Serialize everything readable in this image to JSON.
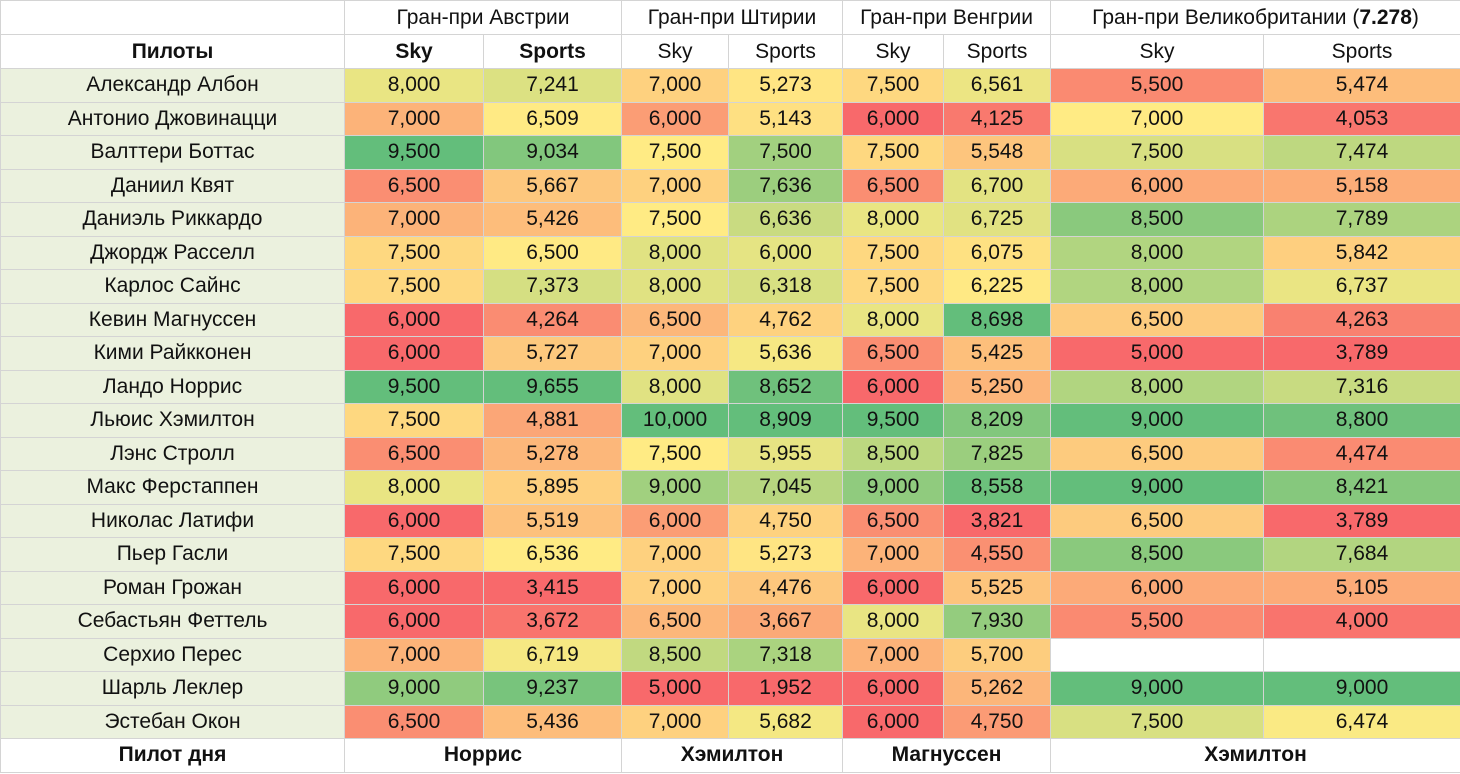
{
  "header": {
    "grand_prix": [
      {
        "name": "Гран-при Австрии",
        "name_suffix": "",
        "rating": ""
      },
      {
        "name": "Гран-при Штирии",
        "name_suffix": "",
        "rating": ""
      },
      {
        "name": "Гран-при Венгрии",
        "name_suffix": "",
        "rating": ""
      },
      {
        "name": "Гран-при Великобритании (",
        "rating": "7.278",
        "name_suffix": ")"
      }
    ],
    "pilots_label": "Пилоты",
    "sky_label": "Sky",
    "sports_label": "Sports"
  },
  "rows": [
    {
      "name": "Александр Албон",
      "values": [
        "8,000",
        "7,241",
        "7,000",
        "5,273",
        "7,500",
        "6,561",
        "5,500",
        "5,474"
      ]
    },
    {
      "name": "Антонио Джовинацци",
      "values": [
        "7,000",
        "6,509",
        "6,000",
        "5,143",
        "6,000",
        "4,125",
        "7,000",
        "4,053"
      ]
    },
    {
      "name": "Валттери Боттас",
      "values": [
        "9,500",
        "9,034",
        "7,500",
        "7,500",
        "7,500",
        "5,548",
        "7,500",
        "7,474"
      ]
    },
    {
      "name": "Даниил Квят",
      "values": [
        "6,500",
        "5,667",
        "7,000",
        "7,636",
        "6,500",
        "6,700",
        "6,000",
        "5,158"
      ]
    },
    {
      "name": "Даниэль Риккардо",
      "values": [
        "7,000",
        "5,426",
        "7,500",
        "6,636",
        "8,000",
        "6,725",
        "8,500",
        "7,789"
      ]
    },
    {
      "name": "Джордж Расселл",
      "values": [
        "7,500",
        "6,500",
        "8,000",
        "6,000",
        "7,500",
        "6,075",
        "8,000",
        "5,842"
      ]
    },
    {
      "name": "Карлос Сайнс",
      "values": [
        "7,500",
        "7,373",
        "8,000",
        "6,318",
        "7,500",
        "6,225",
        "8,000",
        "6,737"
      ]
    },
    {
      "name": "Кевин Магнуссен",
      "values": [
        "6,000",
        "4,264",
        "6,500",
        "4,762",
        "8,000",
        "8,698",
        "6,500",
        "4,263"
      ]
    },
    {
      "name": "Кими Райкконен",
      "values": [
        "6,000",
        "5,727",
        "7,000",
        "5,636",
        "6,500",
        "5,425",
        "5,000",
        "3,789"
      ]
    },
    {
      "name": "Ландо Норрис",
      "values": [
        "9,500",
        "9,655",
        "8,000",
        "8,652",
        "6,000",
        "5,250",
        "8,000",
        "7,316"
      ]
    },
    {
      "name": "Льюис Хэмилтон",
      "values": [
        "7,500",
        "4,881",
        "10,000",
        "8,909",
        "9,500",
        "8,209",
        "9,000",
        "8,800"
      ]
    },
    {
      "name": "Лэнс Стролл",
      "values": [
        "6,500",
        "5,278",
        "7,500",
        "5,955",
        "8,500",
        "7,825",
        "6,500",
        "4,474"
      ]
    },
    {
      "name": "Макс Ферстаппен",
      "values": [
        "8,000",
        "5,895",
        "9,000",
        "7,045",
        "9,000",
        "8,558",
        "9,000",
        "8,421"
      ]
    },
    {
      "name": "Николас Латифи",
      "values": [
        "6,000",
        "5,519",
        "6,000",
        "4,750",
        "6,500",
        "3,821",
        "6,500",
        "3,789"
      ]
    },
    {
      "name": "Пьер Гасли",
      "values": [
        "7,500",
        "6,536",
        "7,000",
        "5,273",
        "7,000",
        "4,550",
        "8,500",
        "7,684"
      ]
    },
    {
      "name": "Роман Грожан",
      "values": [
        "6,000",
        "3,415",
        "7,000",
        "4,476",
        "6,000",
        "5,525",
        "6,000",
        "5,105"
      ]
    },
    {
      "name": "Себастьян Феттель",
      "values": [
        "6,000",
        "3,672",
        "6,500",
        "3,667",
        "8,000",
        "7,930",
        "5,500",
        "4,000"
      ]
    },
    {
      "name": "Серхио Перес",
      "values": [
        "7,000",
        "6,719",
        "8,500",
        "7,318",
        "7,000",
        "5,700",
        "",
        ""
      ]
    },
    {
      "name": "Шарль Леклер",
      "values": [
        "9,000",
        "9,237",
        "5,000",
        "1,952",
        "6,000",
        "5,262",
        "9,000",
        "9,000"
      ]
    },
    {
      "name": "Эстебан Окон",
      "values": [
        "6,500",
        "5,436",
        "7,000",
        "5,682",
        "6,000",
        "4,750",
        "7,500",
        "6,474"
      ]
    }
  ],
  "footer": {
    "label": "Пилот дня",
    "winners": [
      "Норрис",
      "Хэмилтон",
      "Магнуссен",
      "Хэмилтон"
    ]
  },
  "heat_colors": {
    "low": "#f8696b",
    "mid": "#ffeb84",
    "high": "#63be7b",
    "pilot_bg": "#ebf1de"
  }
}
